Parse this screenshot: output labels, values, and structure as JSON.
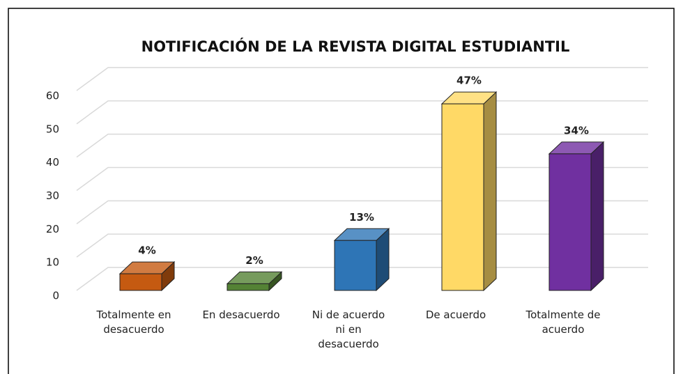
{
  "chart_data": {
    "type": "bar3d",
    "title": "NOTIFICACIÓN DE LA REVISTA DIGITAL ESTUDIANTIL",
    "categories": [
      "Totalmente en desacuerdo",
      "En desacuerdo",
      "Ni de acuerdo ni en desacuerdo",
      "De acuerdo",
      "Totalmente de acuerdo"
    ],
    "values": [
      5,
      2,
      15,
      56,
      41
    ],
    "value_labels": [
      "4%",
      "2%",
      "13%",
      "47%",
      "34%"
    ],
    "colors": [
      "#c55a11",
      "#548235",
      "#2e75b6",
      "#ffd966",
      "#7030a0"
    ],
    "ylim": [
      0,
      60
    ],
    "yticks": [
      0,
      10,
      20,
      30,
      40,
      50,
      60
    ],
    "grid": true
  }
}
